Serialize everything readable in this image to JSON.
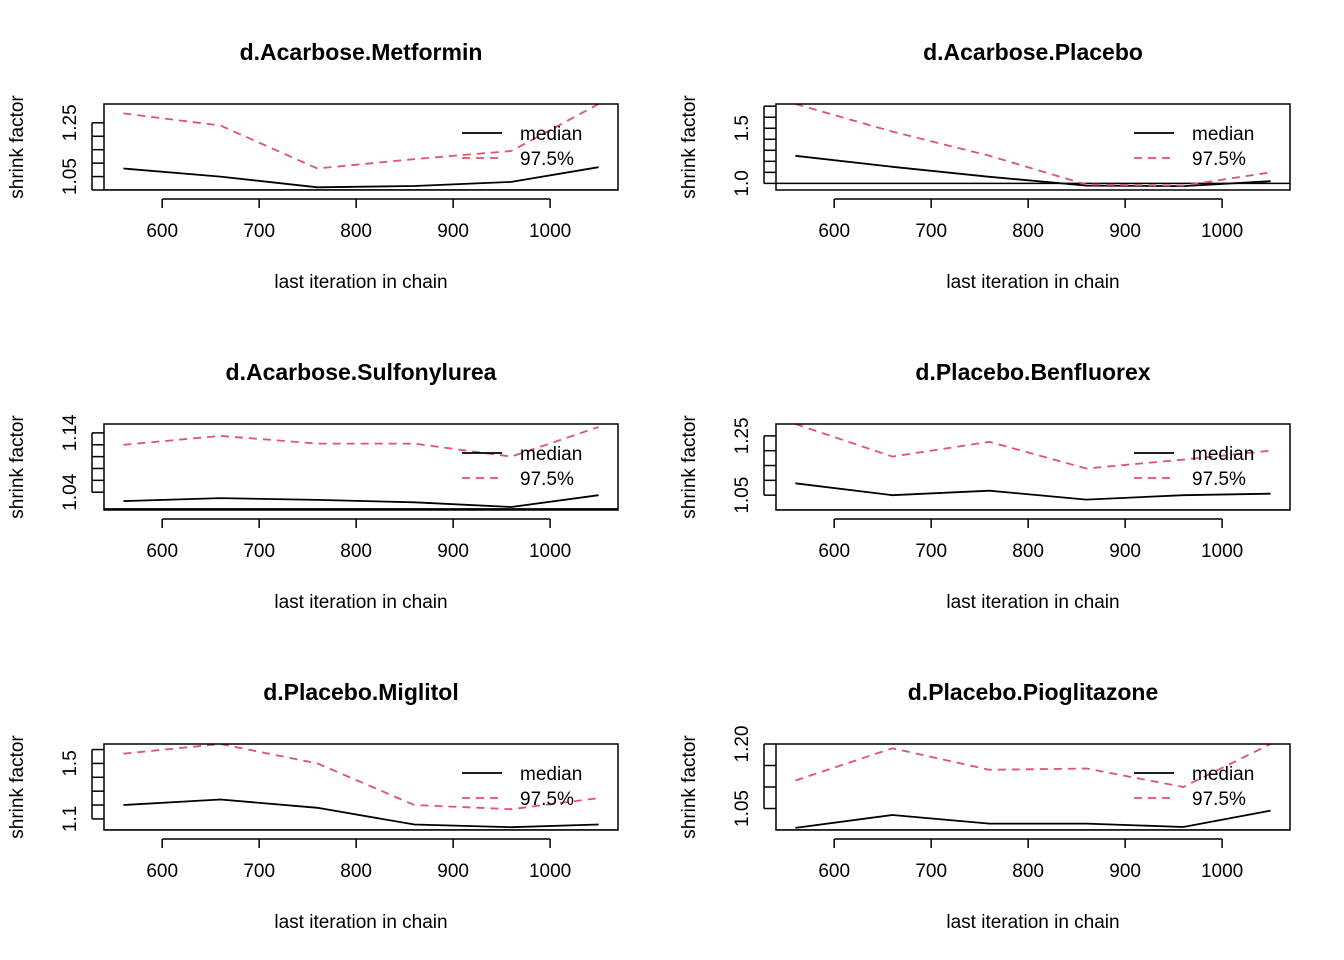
{
  "chart_data": [
    {
      "type": "line",
      "title": "d.Acarbose.Metformin",
      "xlabel": "last iteration in chain",
      "ylabel": "shrink factor",
      "x": [
        560,
        660,
        760,
        860,
        960,
        1050
      ],
      "xticks": [
        600,
        700,
        800,
        900,
        1000
      ],
      "xlim": [
        540,
        1070
      ],
      "ylim": [
        1.0,
        1.32
      ],
      "yticks": [
        1.0,
        1.05,
        1.1,
        1.15,
        1.2,
        1.25
      ],
      "ytick_labels": [
        {
          "value": 1.05,
          "label": "1.05"
        },
        {
          "value": 1.25,
          "label": "1.25"
        }
      ],
      "hline": 1.0,
      "legend": {
        "position": "top-right",
        "entries": [
          "median",
          "97.5%"
        ]
      },
      "series": [
        {
          "name": "median",
          "color": "#000000",
          "dash": "solid",
          "values": [
            1.08,
            1.05,
            1.01,
            1.015,
            1.03,
            1.085
          ]
        },
        {
          "name": "97.5%",
          "color": "#DF536B",
          "dash": "dashed",
          "values": [
            1.285,
            1.24,
            1.08,
            1.115,
            1.145,
            1.32
          ]
        }
      ]
    },
    {
      "type": "line",
      "title": "d.Acarbose.Placebo",
      "xlabel": "last iteration in chain",
      "ylabel": "shrink factor",
      "x": [
        560,
        660,
        760,
        860,
        960,
        1050
      ],
      "xticks": [
        600,
        700,
        800,
        900,
        1000
      ],
      "xlim": [
        540,
        1070
      ],
      "ylim": [
        0.94,
        1.72
      ],
      "yticks": [
        1.0,
        1.1,
        1.2,
        1.3,
        1.4,
        1.5,
        1.6,
        1.7
      ],
      "ytick_labels": [
        {
          "value": 1.0,
          "label": "1.0"
        },
        {
          "value": 1.5,
          "label": "1.5"
        }
      ],
      "hline": 1.0,
      "legend": {
        "position": "top-right",
        "entries": [
          "median",
          "97.5%"
        ]
      },
      "series": [
        {
          "name": "median",
          "color": "#000000",
          "dash": "solid",
          "values": [
            1.25,
            1.15,
            1.06,
            0.98,
            0.975,
            1.02
          ]
        },
        {
          "name": "97.5%",
          "color": "#DF536B",
          "dash": "dashed",
          "values": [
            1.72,
            1.47,
            1.25,
            0.99,
            0.98,
            1.1
          ]
        }
      ]
    },
    {
      "type": "line",
      "title": "d.Acarbose.Sulfonylurea",
      "xlabel": "last iteration in chain",
      "ylabel": "shrink factor",
      "x": [
        560,
        660,
        760,
        860,
        960,
        1050
      ],
      "xticks": [
        600,
        700,
        800,
        900,
        1000
      ],
      "xlim": [
        540,
        1070
      ],
      "ylim": [
        1.01,
        1.155
      ],
      "yticks": [
        1.04,
        1.06,
        1.08,
        1.1,
        1.12,
        1.14
      ],
      "ytick_labels": [
        {
          "value": 1.04,
          "label": "1.04"
        },
        {
          "value": 1.14,
          "label": "1.14"
        }
      ],
      "hline": 1.012,
      "legend": {
        "position": "top-right",
        "entries": [
          "median",
          "97.5%"
        ]
      },
      "series": [
        {
          "name": "median",
          "color": "#000000",
          "dash": "solid",
          "values": [
            1.025,
            1.03,
            1.027,
            1.023,
            1.015,
            1.035
          ]
        },
        {
          "name": "97.5%",
          "color": "#DF536B",
          "dash": "dashed",
          "values": [
            1.12,
            1.135,
            1.122,
            1.122,
            1.1,
            1.15
          ]
        }
      ]
    },
    {
      "type": "line",
      "title": "d.Placebo.Benfluorex",
      "xlabel": "last iteration in chain",
      "ylabel": "shrink factor",
      "x": [
        560,
        660,
        760,
        860,
        960,
        1050
      ],
      "xticks": [
        600,
        700,
        800,
        900,
        1000
      ],
      "xlim": [
        540,
        1070
      ],
      "ylim": [
        1.0,
        1.29
      ],
      "yticks": [
        1.05,
        1.1,
        1.15,
        1.2,
        1.25
      ],
      "ytick_labels": [
        {
          "value": 1.05,
          "label": "1.05"
        },
        {
          "value": 1.25,
          "label": "1.25"
        }
      ],
      "hline": 1.0,
      "legend": {
        "position": "top-right",
        "entries": [
          "median",
          "97.5%"
        ]
      },
      "series": [
        {
          "name": "median",
          "color": "#000000",
          "dash": "solid",
          "values": [
            1.09,
            1.05,
            1.065,
            1.035,
            1.05,
            1.055
          ]
        },
        {
          "name": "97.5%",
          "color": "#DF536B",
          "dash": "dashed",
          "values": [
            1.29,
            1.18,
            1.23,
            1.14,
            1.17,
            1.2
          ]
        }
      ]
    },
    {
      "type": "line",
      "title": "d.Placebo.Miglitol",
      "xlabel": "last iteration in chain",
      "ylabel": "shrink factor",
      "x": [
        560,
        660,
        760,
        860,
        960,
        1050
      ],
      "xticks": [
        600,
        700,
        800,
        900,
        1000
      ],
      "xlim": [
        540,
        1070
      ],
      "ylim": [
        1.02,
        1.64
      ],
      "yticks": [
        1.1,
        1.2,
        1.3,
        1.4,
        1.5,
        1.6
      ],
      "ytick_labels": [
        {
          "value": 1.1,
          "label": "1.1"
        },
        {
          "value": 1.5,
          "label": "1.5"
        }
      ],
      "hline": 1.02,
      "legend": {
        "position": "top-right",
        "entries": [
          "median",
          "97.5%"
        ]
      },
      "series": [
        {
          "name": "median",
          "color": "#000000",
          "dash": "solid",
          "values": [
            1.2,
            1.24,
            1.18,
            1.06,
            1.04,
            1.06
          ]
        },
        {
          "name": "97.5%",
          "color": "#DF536B",
          "dash": "dashed",
          "values": [
            1.57,
            1.64,
            1.5,
            1.2,
            1.17,
            1.25
          ]
        }
      ]
    },
    {
      "type": "line",
      "title": "d.Placebo.Pioglitazone",
      "xlabel": "last iteration in chain",
      "ylabel": "shrink factor",
      "x": [
        560,
        660,
        760,
        860,
        960,
        1050
      ],
      "xticks": [
        600,
        700,
        800,
        900,
        1000
      ],
      "xlim": [
        540,
        1070
      ],
      "ylim": [
        1.0,
        1.2
      ],
      "yticks": [
        1.05,
        1.1,
        1.15,
        1.2
      ],
      "ytick_labels": [
        {
          "value": 1.05,
          "label": "1.05"
        },
        {
          "value": 1.2,
          "label": "1.20"
        }
      ],
      "hline": 1.0,
      "legend": {
        "position": "top-right",
        "entries": [
          "median",
          "97.5%"
        ]
      },
      "series": [
        {
          "name": "median",
          "color": "#000000",
          "dash": "solid",
          "values": [
            1.005,
            1.035,
            1.015,
            1.015,
            1.007,
            1.045
          ]
        },
        {
          "name": "97.5%",
          "color": "#DF536B",
          "dash": "dashed",
          "values": [
            1.115,
            1.19,
            1.14,
            1.143,
            1.1,
            1.2
          ]
        }
      ]
    }
  ]
}
